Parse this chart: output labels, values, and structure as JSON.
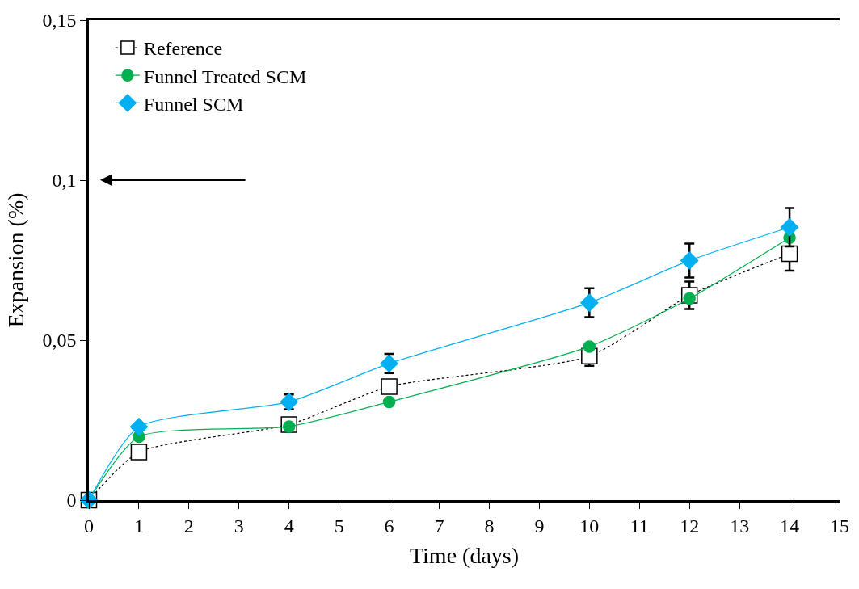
{
  "chart_data": {
    "type": "line",
    "xlabel": "Time (days)",
    "ylabel": "Expansion (%)",
    "x": [
      0,
      1,
      4,
      6,
      10,
      12,
      14
    ],
    "series": [
      {
        "name": "Reference",
        "color": "#000000",
        "marker": "square",
        "line_style": "dotted",
        "values": [
          0,
          0.015,
          0.0236,
          0.0355,
          0.045,
          0.064,
          0.077
        ],
        "errors": [
          null,
          null,
          null,
          null,
          0.003,
          0.0043,
          0.0053
        ]
      },
      {
        "name": "Funnel Treated SCM",
        "color": "#00b050",
        "marker": "circle",
        "line_style": "solid",
        "values": [
          0,
          0.0198,
          0.023,
          0.0307,
          0.048,
          0.063,
          0.082
        ]
      },
      {
        "name": "Funnel SCM",
        "color": "#00b0f0",
        "marker": "diamond",
        "line_style": "solid",
        "values": [
          0,
          0.0229,
          0.0307,
          0.0427,
          0.0617,
          0.0749,
          0.0853
        ],
        "errors": [
          null,
          null,
          0.0023,
          0.003,
          0.0045,
          0.0053,
          0.006
        ]
      }
    ],
    "xlim": [
      0,
      15
    ],
    "xticks": [
      0,
      1,
      2,
      3,
      4,
      5,
      6,
      7,
      8,
      9,
      10,
      11,
      12,
      13,
      14,
      15
    ],
    "ylim": [
      0,
      0.15
    ],
    "yticks": [
      {
        "value": 0,
        "label": "0"
      },
      {
        "value": 0.05,
        "label": "0,05"
      },
      {
        "value": 0.1,
        "label": "0,1"
      },
      {
        "value": 0.15,
        "label": "0,15"
      }
    ],
    "legend": "top left"
  }
}
